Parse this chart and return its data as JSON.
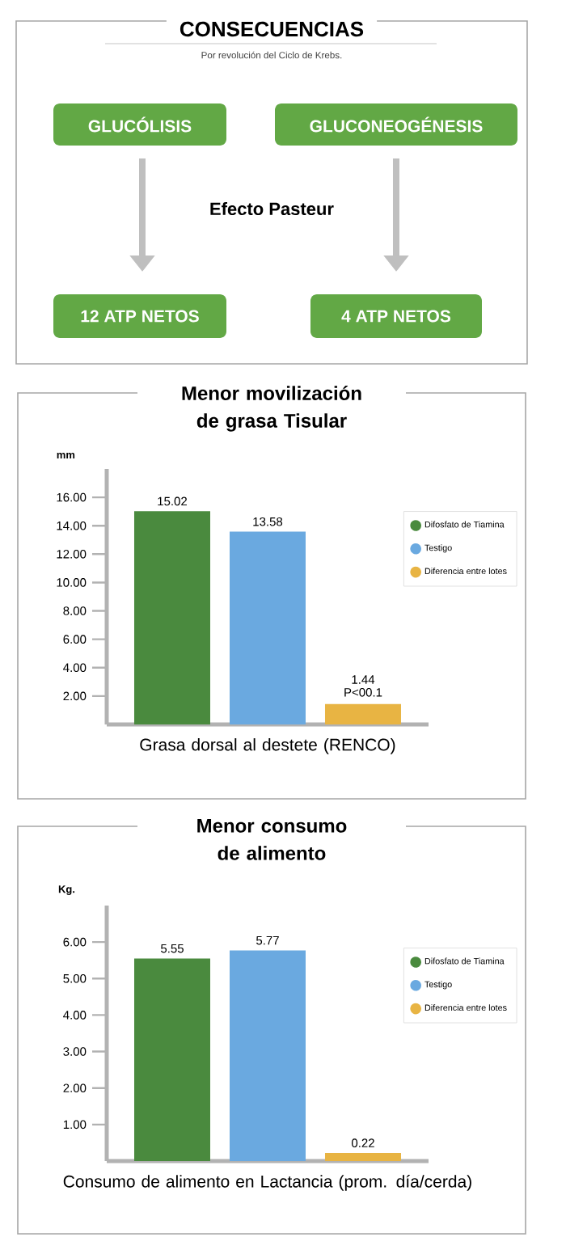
{
  "chart_data": [
    {
      "type": "other",
      "title": "CONSECUENCIAS",
      "subtitle": "Por revolución del Ciclo de Krebs.",
      "annotations": [
        "GLUCÓLISIS",
        "GLUCONEOGÉNESIS",
        "Efecto Pasteur",
        "12 ATP NETOS",
        "4 ATP NETOS"
      ]
    },
    {
      "type": "bar",
      "title": "Menor movilización de grasa Tisular",
      "xlabel": "Grasa dorsal al destete (RENCO)",
      "ylabel": "mm",
      "categories": [
        null
      ],
      "series": [
        {
          "name": "Difosfato de Tiamina",
          "color": "#4a8a3e",
          "values": [
            15.02
          ]
        },
        {
          "name": "Testigo",
          "color": "#6aa9e0",
          "values": [
            13.58
          ]
        },
        {
          "name": "Diferencia entre lotes",
          "color": "#e8b443",
          "values": [
            1.44
          ]
        }
      ],
      "ylim": [
        0,
        18
      ],
      "yticks": [
        {
          "value": 2,
          "label": "2.00"
        },
        {
          "value": 4,
          "label": "4.00"
        },
        {
          "value": 6,
          "label": "6.00"
        },
        {
          "value": 8,
          "label": "8.00"
        },
        {
          "value": 10,
          "label": "10.00"
        },
        {
          "value": 12,
          "label": "12.00"
        },
        {
          "value": 14,
          "label": "14.00"
        },
        {
          "value": 16,
          "label": "16.00"
        }
      ],
      "data_labels": true,
      "legend": "top right",
      "annotations": [
        {
          "text": "P<00.1",
          "y": 1.44
        }
      ]
    },
    {
      "type": "bar",
      "title": "Menor consumo de alimento",
      "xlabel": "Consumo de alimento en Lactancia (prom. día/cerda)",
      "ylabel": "Kg.",
      "categories": [
        null
      ],
      "series": [
        {
          "name": "Difosfato de Tiamina",
          "color": "#4a8a3e",
          "values": [
            5.55
          ]
        },
        {
          "name": "Testigo",
          "color": "#6aa9e0",
          "values": [
            5.77
          ]
        },
        {
          "name": "Diferencia entre lotes",
          "color": "#e8b443",
          "values": [
            0.22
          ]
        }
      ],
      "ylim": [
        0,
        7
      ],
      "yticks": [
        {
          "value": 1,
          "label": "1.00"
        },
        {
          "value": 2,
          "label": "2.00"
        },
        {
          "value": 3,
          "label": "3.00"
        },
        {
          "value": 4,
          "label": "4.00"
        },
        {
          "value": 5,
          "label": "5.00"
        },
        {
          "value": 6,
          "label": "6.00"
        }
      ],
      "data_labels": true,
      "legend": "top right"
    }
  ]
}
